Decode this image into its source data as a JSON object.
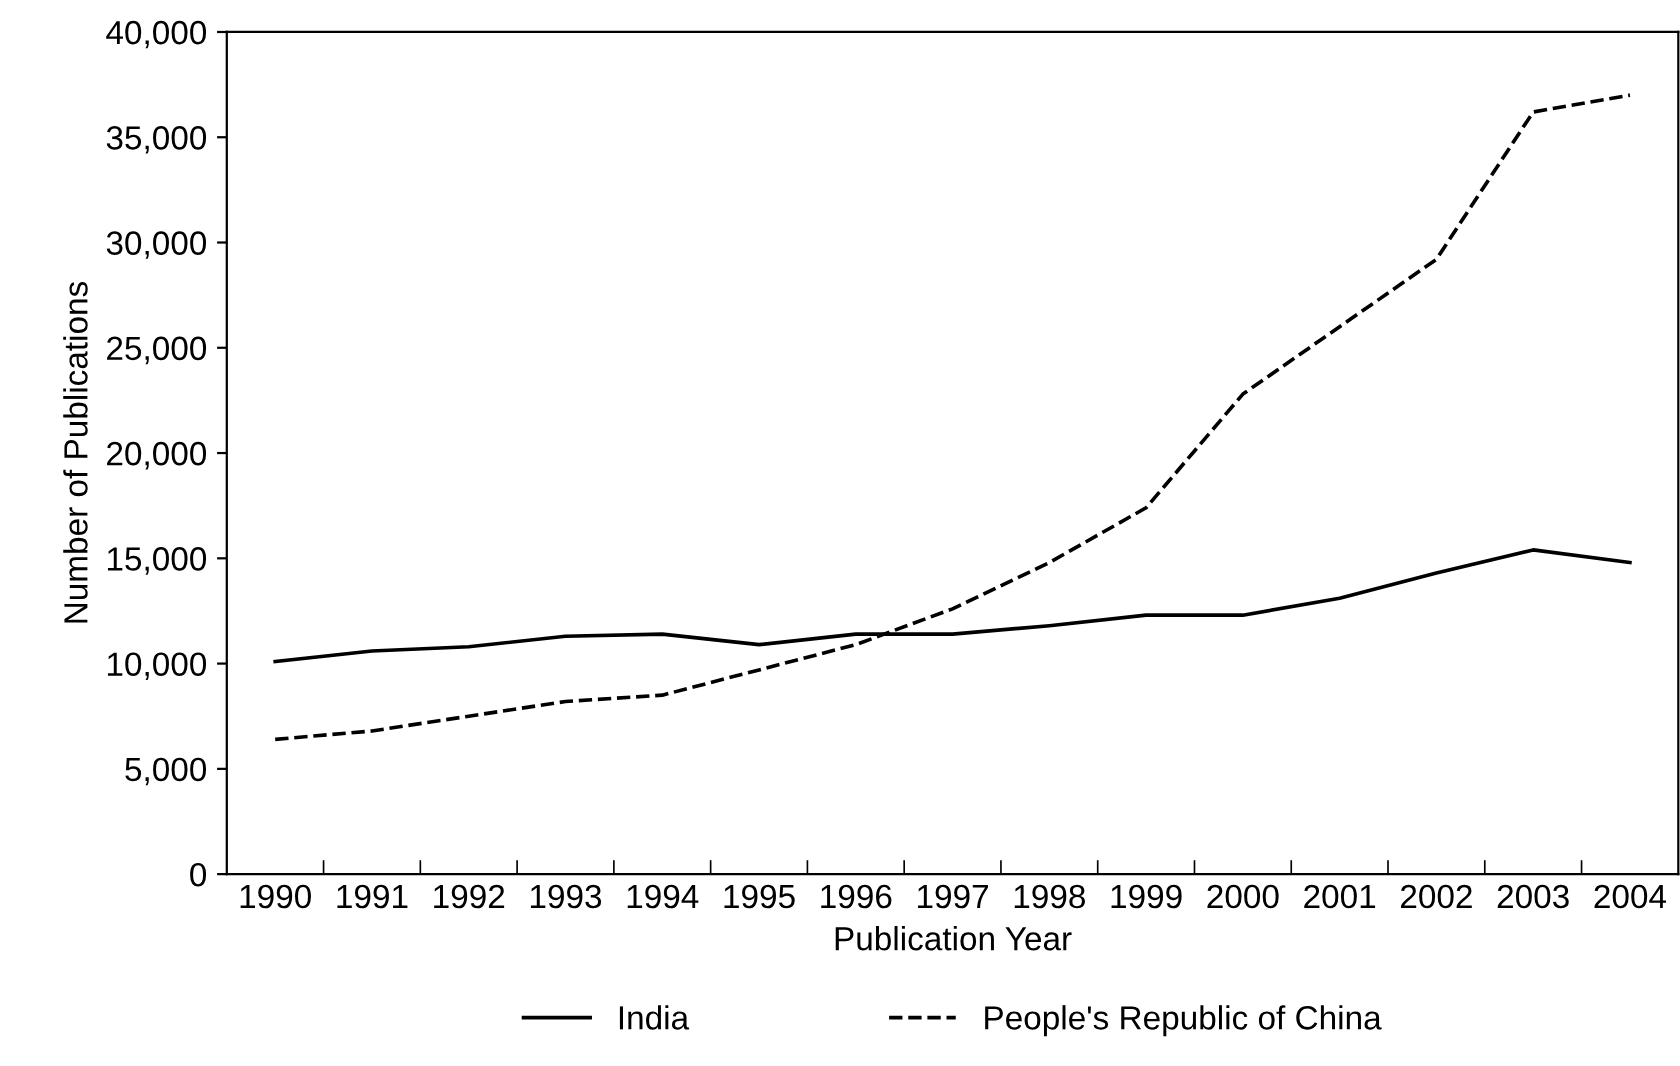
{
  "chart_data": {
    "type": "line",
    "xlabel": "Publication Year",
    "ylabel": "Number of Publications",
    "categories": [
      "1990",
      "1991",
      "1992",
      "1993",
      "1994",
      "1995",
      "1996",
      "1997",
      "1998",
      "1999",
      "2000",
      "2001",
      "2002",
      "2003",
      "2004"
    ],
    "series": [
      {
        "name": "India",
        "color": "#000000",
        "line_style": "solid",
        "values": [
          10100,
          10600,
          10800,
          11300,
          11400,
          10900,
          11400,
          11400,
          11800,
          12300,
          12300,
          13100,
          14300,
          15400,
          14800
        ]
      },
      {
        "name": "People's Republic of China",
        "color": "#000000",
        "line_style": "dashed",
        "values": [
          6400,
          6800,
          7500,
          8200,
          8500,
          9700,
          10900,
          12600,
          14800,
          17400,
          22800,
          26000,
          29200,
          36200,
          37000
        ]
      }
    ],
    "ylim": [
      0,
      40000
    ],
    "yticks": [
      {
        "value": 0,
        "label": "0"
      },
      {
        "value": 5000,
        "label": "5,000"
      },
      {
        "value": 10000,
        "label": "10,000"
      },
      {
        "value": 15000,
        "label": "15,000"
      },
      {
        "value": 20000,
        "label": "20,000"
      },
      {
        "value": 25000,
        "label": "25,000"
      },
      {
        "value": 30000,
        "label": "30,000"
      },
      {
        "value": 35000,
        "label": "35,000"
      },
      {
        "value": 40000,
        "label": "40,000"
      }
    ],
    "grid": false,
    "legend": "bottom",
    "marker": "none"
  }
}
